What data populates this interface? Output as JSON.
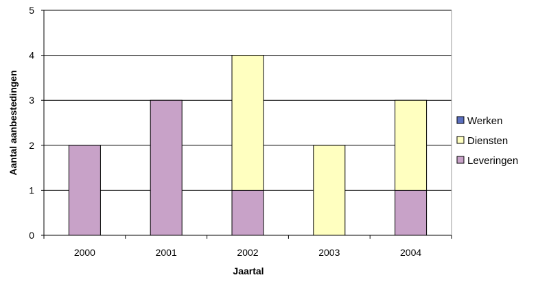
{
  "chart_data": {
    "type": "bar",
    "stacked": true,
    "categories": [
      "2000",
      "2001",
      "2002",
      "2003",
      "2004"
    ],
    "series": [
      {
        "name": "Leveringen",
        "values": [
          2,
          3,
          1,
          0,
          1
        ],
        "color": "#c8a2c8"
      },
      {
        "name": "Diensten",
        "values": [
          0,
          0,
          3,
          2,
          2
        ],
        "color": "#ffffc0"
      },
      {
        "name": "Werken",
        "values": [
          0,
          0,
          0,
          0,
          0
        ],
        "color": "#5b6fbf"
      }
    ],
    "legend_order": [
      "Werken",
      "Diensten",
      "Leveringen"
    ],
    "title": "",
    "xlabel": "Jaartal",
    "ylabel": "Aantal aanbestedingen",
    "ylim": [
      0,
      5
    ],
    "yticks": [
      "0",
      "1",
      "2",
      "3",
      "4",
      "5"
    ],
    "grid": true,
    "legend_position": "right"
  }
}
